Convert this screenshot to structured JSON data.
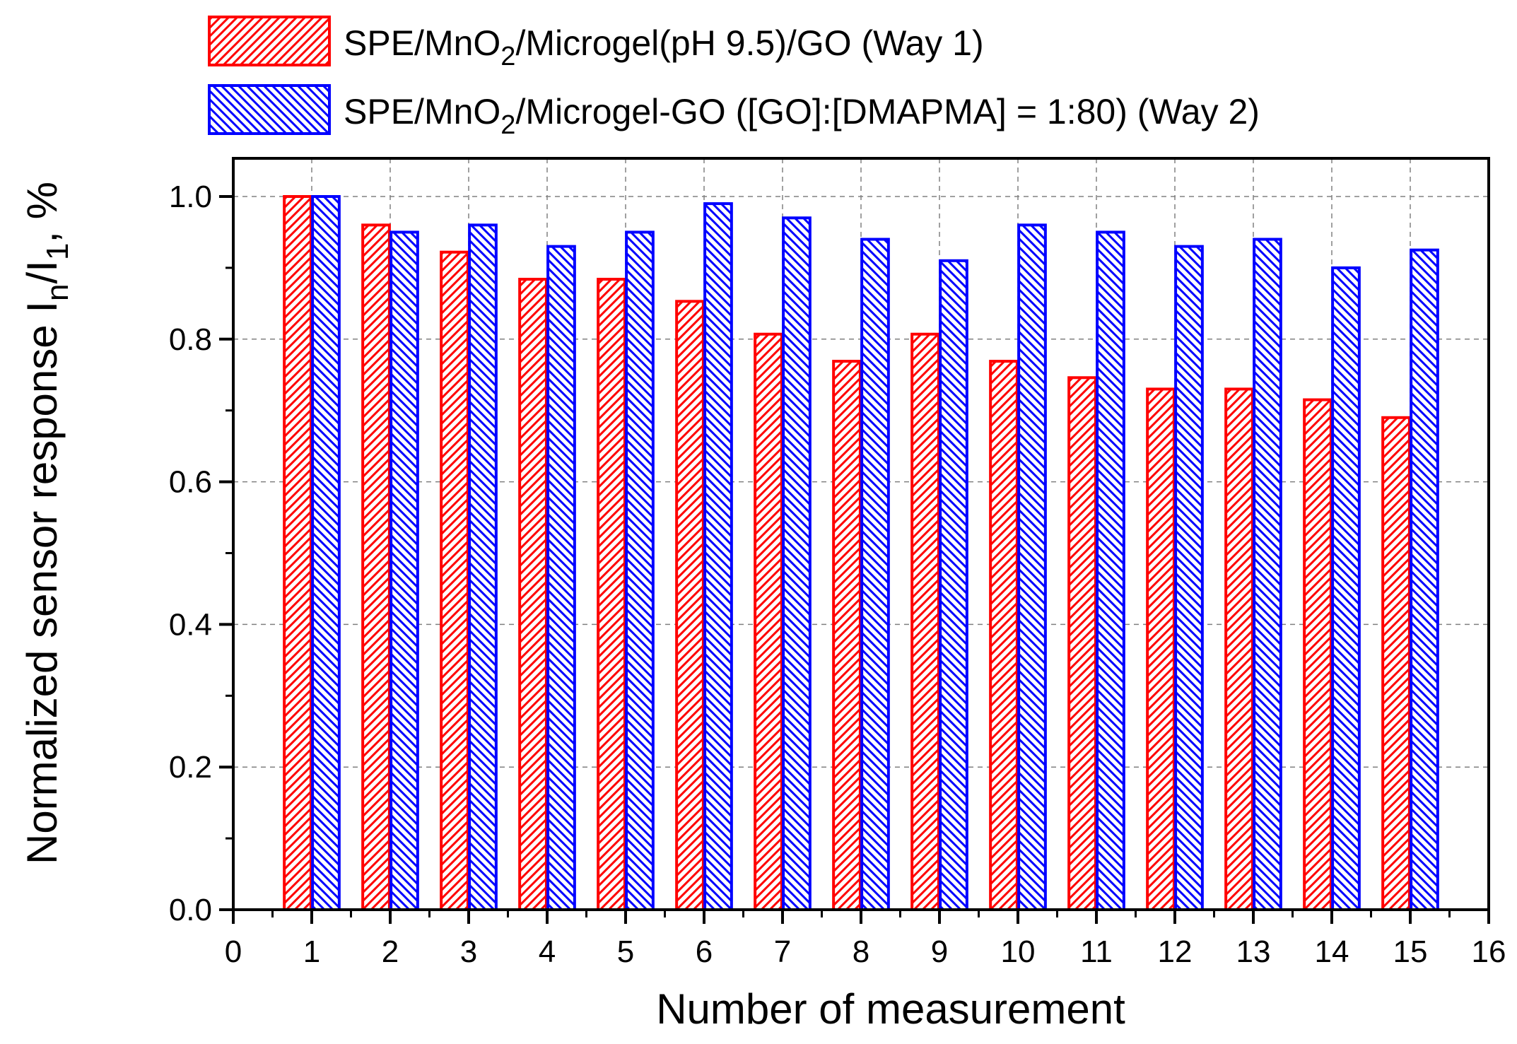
{
  "chart_data": {
    "type": "bar",
    "xlabel": "Number of measurement",
    "ylabel_parts": {
      "pre": "Normalized sensor response I",
      "sub1": "n",
      "mid": "/I",
      "sub2": "1",
      "post": ", %"
    },
    "xlim": [
      0,
      16
    ],
    "ylim": [
      0,
      1.0
    ],
    "xticks": [
      "0",
      "1",
      "2",
      "3",
      "4",
      "5",
      "6",
      "7",
      "8",
      "9",
      "10",
      "11",
      "12",
      "13",
      "14",
      "15",
      "16"
    ],
    "yticks": [
      "0.0",
      "0.2",
      "0.4",
      "0.6",
      "0.8",
      "1.0"
    ],
    "grid": true,
    "legend_position": "top",
    "categories": [
      1,
      2,
      3,
      4,
      5,
      6,
      7,
      8,
      9,
      10,
      11,
      12,
      13,
      14,
      15
    ],
    "series": [
      {
        "name": "SPE/MnO2/Microgel(pH 9.5)/GO (Way 1)",
        "label_parts": {
          "pre": "SPE/MnO",
          "sub": "2",
          "post": "/Microgel(pH 9.5)/GO (Way 1)"
        },
        "color": "#ff0000",
        "hatch": "diagonal-up",
        "values": [
          1.0,
          0.96,
          0.922,
          0.884,
          0.884,
          0.853,
          0.807,
          0.769,
          0.807,
          0.769,
          0.746,
          0.73,
          0.73,
          0.715,
          0.69
        ]
      },
      {
        "name": "SPE/MnO2/Microgel-GO ([GO]:[DMAPMA] = 1:80) (Way 2)",
        "label_parts": {
          "pre": "SPE/MnO",
          "sub": "2",
          "post": "/Microgel-GO ([GO]:[DMAPMA] = 1:80) (Way 2)"
        },
        "color": "#0000ff",
        "hatch": "diagonal-down",
        "values": [
          1.0,
          0.95,
          0.96,
          0.93,
          0.95,
          0.99,
          0.97,
          0.94,
          0.91,
          0.96,
          0.95,
          0.93,
          0.94,
          0.9,
          0.925
        ]
      }
    ]
  }
}
